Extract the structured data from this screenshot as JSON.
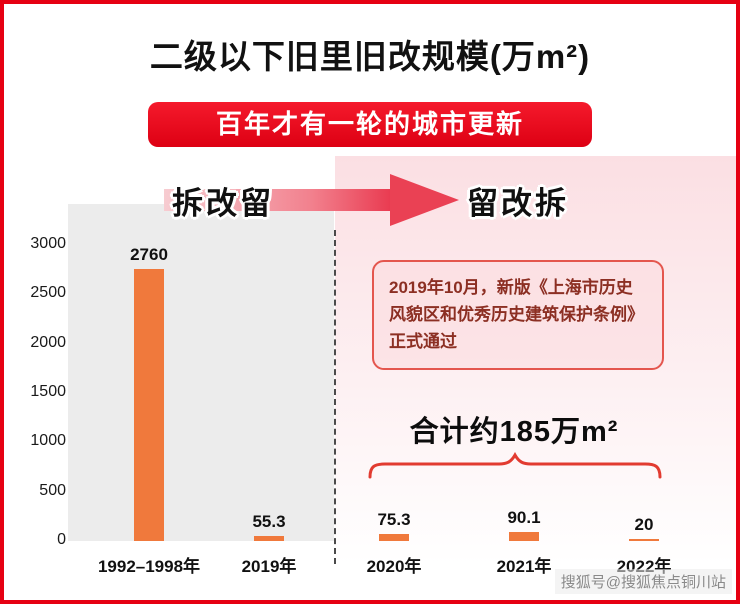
{
  "title": "二级以下旧里旧改规模(万m²)",
  "banner": "百年才有一轮的城市更新",
  "phase_left": "拆改留",
  "phase_right": "留改拆",
  "annotation": "2019年10月，新版《上海市历史风貌区和优秀历史建筑保护条例》正式通过",
  "total_label": "合计约185万m²",
  "watermark": "搜狐号@搜狐焦点铜川站",
  "colors": {
    "frame_border": "#e60012",
    "banner_red": "#e60013",
    "bar_orange": "#f0793c",
    "annotation_border": "#e4564e",
    "brace_red": "#e23b30",
    "left_panel_gray": "#ececec",
    "right_panel_pink": "#fbdfe3"
  },
  "chart_data": {
    "type": "bar",
    "categories": [
      "1992–1998年",
      "2019年",
      "2020年",
      "2021年",
      "2022年"
    ],
    "values": [
      2760,
      55.3,
      75.3,
      90.1,
      20
    ],
    "value_labels": [
      "2760",
      "55.3",
      "75.3",
      "90.1",
      "20"
    ],
    "y_ticks": [
      0,
      500,
      1000,
      1500,
      2000,
      2500,
      3000
    ],
    "ylim": [
      0,
      3000
    ],
    "title": "二级以下旧里旧改规模(万m²)",
    "xlabel": "",
    "ylabel": "",
    "grid": false,
    "legend": false,
    "bar_color": "#f0793c",
    "groups": {
      "left_phase": {
        "label": "拆改留",
        "categories": [
          "1992–1998年",
          "2019年"
        ]
      },
      "right_phase": {
        "label": "留改拆",
        "categories": [
          "2020年",
          "2021年",
          "2022年"
        ],
        "total": "合计约185万m²"
      }
    }
  }
}
